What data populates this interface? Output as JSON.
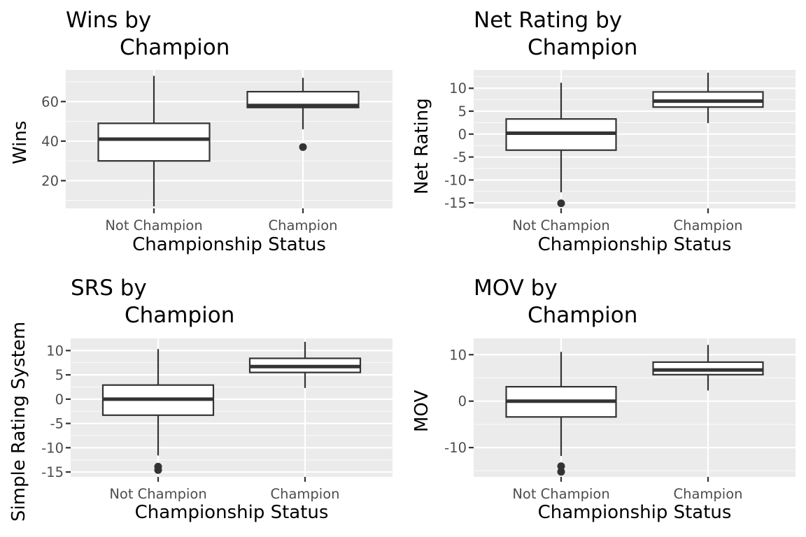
{
  "chart_data": [
    {
      "type": "box",
      "title_lines": [
        "Wins by",
        "Champion"
      ],
      "xlabel": "Championship Status",
      "ylabel": "Wins",
      "categories": [
        "Not Champion",
        "Champion"
      ],
      "ylim": [
        6,
        76
      ],
      "yticks": [
        20,
        40,
        60
      ],
      "ytick_labels": [
        "20",
        "40",
        "60"
      ],
      "boxes": [
        {
          "category": "Not Champion",
          "whisker_low": 7,
          "q1": 30,
          "median": 41,
          "q3": 49,
          "whisker_high": 73,
          "outliers": []
        },
        {
          "category": "Champion",
          "whisker_low": 46,
          "q1": 57,
          "median": 58,
          "q3": 65,
          "whisker_high": 72,
          "outliers": [
            37
          ]
        }
      ]
    },
    {
      "type": "box",
      "title_lines": [
        "Net Rating by",
        "Champion"
      ],
      "xlabel": "Championship Status",
      "ylabel": "Net Rating",
      "categories": [
        "Not Champion",
        "Champion"
      ],
      "ylim": [
        -16.2,
        14
      ],
      "yticks": [
        -15,
        -10,
        -5,
        0,
        5,
        10
      ],
      "ytick_labels": [
        "-15",
        "-10",
        "-5",
        "0",
        "5",
        "10"
      ],
      "boxes": [
        {
          "category": "Not Champion",
          "whisker_low": -12.7,
          "q1": -3.5,
          "median": 0.2,
          "q3": 3.3,
          "whisker_high": 11.2,
          "outliers": [
            -15.1
          ]
        },
        {
          "category": "Champion",
          "whisker_low": 2.4,
          "q1": 5.9,
          "median": 7.2,
          "q3": 9.2,
          "whisker_high": 13.4,
          "outliers": []
        }
      ]
    },
    {
      "type": "box",
      "title_lines": [
        "SRS by",
        "Champion"
      ],
      "xlabel": "Championship Status",
      "ylabel": "Simple Rating System",
      "categories": [
        "Not Champion",
        "Champion"
      ],
      "ylim": [
        -16,
        12.5
      ],
      "yticks": [
        -15,
        -10,
        -5,
        0,
        5,
        10
      ],
      "ytick_labels": [
        "-15",
        "-10",
        "-5",
        "0",
        "5",
        "10"
      ],
      "boxes": [
        {
          "category": "Not Champion",
          "whisker_low": -11.6,
          "q1": -3.3,
          "median": 0,
          "q3": 2.9,
          "whisker_high": 10.3,
          "outliers": [
            -13.9,
            -14.6
          ]
        },
        {
          "category": "Champion",
          "whisker_low": 2.3,
          "q1": 5.5,
          "median": 6.7,
          "q3": 8.4,
          "whisker_high": 11.8,
          "outliers": []
        }
      ]
    },
    {
      "type": "box",
      "title_lines": [
        "MOV by",
        "Champion"
      ],
      "xlabel": "Championship Status",
      "ylabel": "MOV",
      "categories": [
        "Not Champion",
        "Champion"
      ],
      "ylim": [
        -16.3,
        13.5
      ],
      "yticks": [
        -10,
        0,
        10
      ],
      "ytick_labels": [
        "-10",
        "0",
        "10"
      ],
      "boxes": [
        {
          "category": "Not Champion",
          "whisker_low": -11.8,
          "q1": -3.4,
          "median": 0,
          "q3": 3.1,
          "whisker_high": 10.6,
          "outliers": [
            -14,
            -15.2
          ]
        },
        {
          "category": "Champion",
          "whisker_low": 2.3,
          "q1": 5.7,
          "median": 6.7,
          "q3": 8.4,
          "whisker_high": 12.1,
          "outliers": []
        }
      ]
    }
  ]
}
